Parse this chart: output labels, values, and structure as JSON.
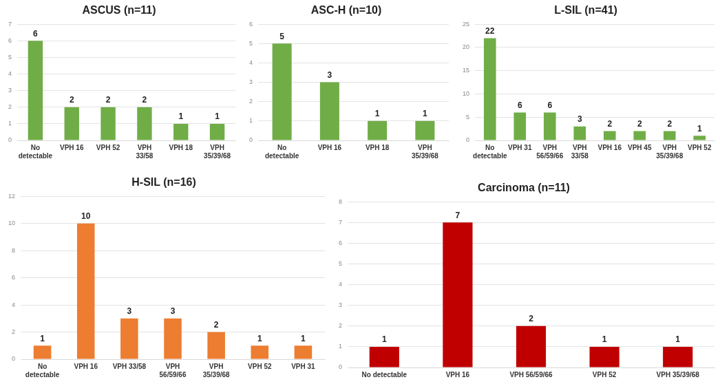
{
  "chart_data": [
    {
      "type": "bar",
      "title": "ASCUS (n=11)",
      "categories": [
        "No detectable",
        "VPH 16",
        "VPH 52",
        "VPH 33/58",
        "VPH 18",
        "VPH 35/39/68"
      ],
      "values": [
        6,
        2,
        2,
        2,
        1,
        1
      ],
      "color": "#70ad47",
      "ylim": [
        0,
        7
      ],
      "yticks": [
        0,
        1,
        2,
        3,
        4,
        5,
        6,
        7
      ],
      "grid": "y",
      "data_labels": true
    },
    {
      "type": "bar",
      "title": "ASC-H (n=10)",
      "categories": [
        "No detectable",
        "VPH 16",
        "VPH 18",
        "VPH 35/39/68"
      ],
      "values": [
        5,
        3,
        1,
        1
      ],
      "color": "#70ad47",
      "ylim": [
        0,
        6
      ],
      "yticks": [
        0,
        1,
        2,
        3,
        4,
        5,
        6
      ],
      "grid": "y",
      "data_labels": true
    },
    {
      "type": "bar",
      "title": "L-SIL (n=41)",
      "categories": [
        "No detectable",
        "VPH 31",
        "VPH 56/59/66",
        "VPH 33/58",
        "VPH 16",
        "VPH 45",
        "VPH 35/39/68",
        "VPH 52"
      ],
      "values": [
        22,
        6,
        6,
        3,
        2,
        2,
        2,
        1
      ],
      "color": "#70ad47",
      "ylim": [
        0,
        25
      ],
      "yticks": [
        0,
        5,
        10,
        15,
        20,
        25
      ],
      "grid": "y",
      "data_labels": true
    },
    {
      "type": "bar",
      "title": "H-SIL (n=16)",
      "categories": [
        "No detectable",
        "VPH 16",
        "VPH 33/58",
        "VPH 56/59/66",
        "VPH 35/39/68",
        "VPH 52",
        "VPH 31"
      ],
      "values": [
        1,
        10,
        3,
        3,
        2,
        1,
        1
      ],
      "color": "#ed7d31",
      "ylim": [
        0,
        12
      ],
      "yticks": [
        0,
        2,
        4,
        6,
        8,
        10,
        12
      ],
      "grid": "y",
      "data_labels": true
    },
    {
      "type": "bar",
      "title": "Carcinoma (n=11)",
      "categories": [
        "No detectable",
        "VPH 16",
        "VPH 56/59/66",
        "VPH 52",
        "VPH 35/39/68"
      ],
      "values": [
        1,
        7,
        2,
        1,
        1
      ],
      "color": "#c00000",
      "ylim": [
        0,
        8
      ],
      "yticks": [
        0,
        1,
        2,
        3,
        4,
        5,
        6,
        7,
        8
      ],
      "grid": "y",
      "data_labels": true
    }
  ]
}
